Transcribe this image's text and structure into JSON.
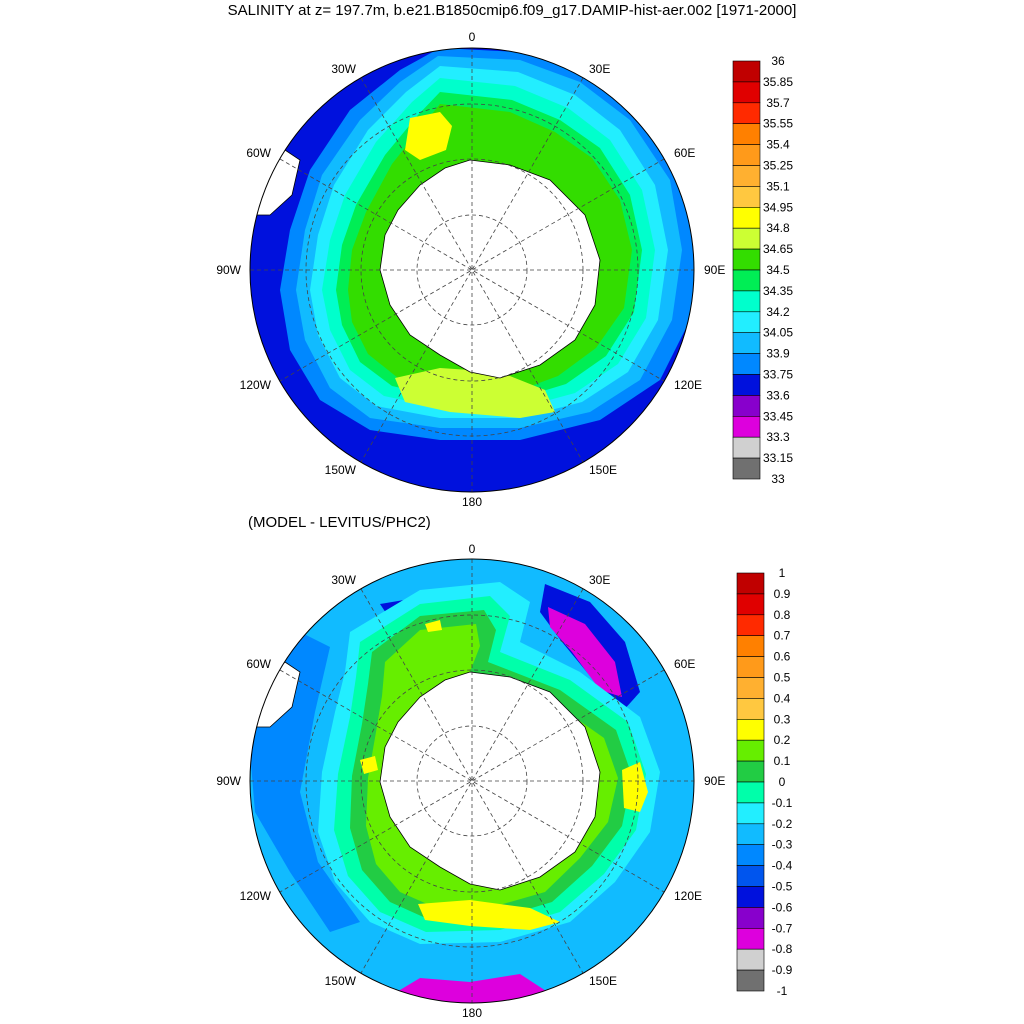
{
  "title": "SALINITY at z= 197.7m, b.e21.B1850cmip6.f09_g17.DAMIP-hist-aer.002 [1971-2000]",
  "subtitle": "(MODEL - LEVITUS/PHC2)",
  "longitude_labels": [
    "0",
    "30E",
    "60E",
    "90E",
    "120E",
    "150E",
    "180",
    "150W",
    "120W",
    "90W",
    "60W",
    "30W"
  ],
  "top_colorbar": {
    "labels": [
      "36",
      "35.85",
      "35.7",
      "35.55",
      "35.4",
      "35.25",
      "35.1",
      "34.95",
      "34.8",
      "34.65",
      "34.5",
      "34.35",
      "34.2",
      "34.05",
      "33.9",
      "33.75",
      "33.6",
      "33.45",
      "33.3",
      "33.15",
      "33"
    ],
    "colors": [
      "#c00000",
      "#e00000",
      "#ff2a00",
      "#ff8000",
      "#ff9a1a",
      "#ffb030",
      "#ffc840",
      "#ffff00",
      "#ccff33",
      "#33dd00",
      "#00ee55",
      "#00ffcc",
      "#22eeff",
      "#11bbff",
      "#0088ff",
      "#0011dd",
      "#8800cc",
      "#dd00dd",
      "#d0d0d0",
      "#707070"
    ]
  },
  "bottom_colorbar": {
    "labels": [
      "1",
      "0.9",
      "0.8",
      "0.7",
      "0.6",
      "0.5",
      "0.4",
      "0.3",
      "0.2",
      "0.1",
      "0",
      "-0.1",
      "-0.2",
      "-0.3",
      "-0.4",
      "-0.5",
      "-0.6",
      "-0.7",
      "-0.8",
      "-0.9",
      "-1"
    ],
    "colors": [
      "#c00000",
      "#e00000",
      "#ff2a00",
      "#ff8000",
      "#ff9a1a",
      "#ffb030",
      "#ffc840",
      "#ffff00",
      "#66ee00",
      "#22cc44",
      "#00ffaa",
      "#22eeff",
      "#11bbff",
      "#0088ff",
      "#0055ee",
      "#0011dd",
      "#8800cc",
      "#dd00dd",
      "#d0d0d0",
      "#707070"
    ]
  }
}
